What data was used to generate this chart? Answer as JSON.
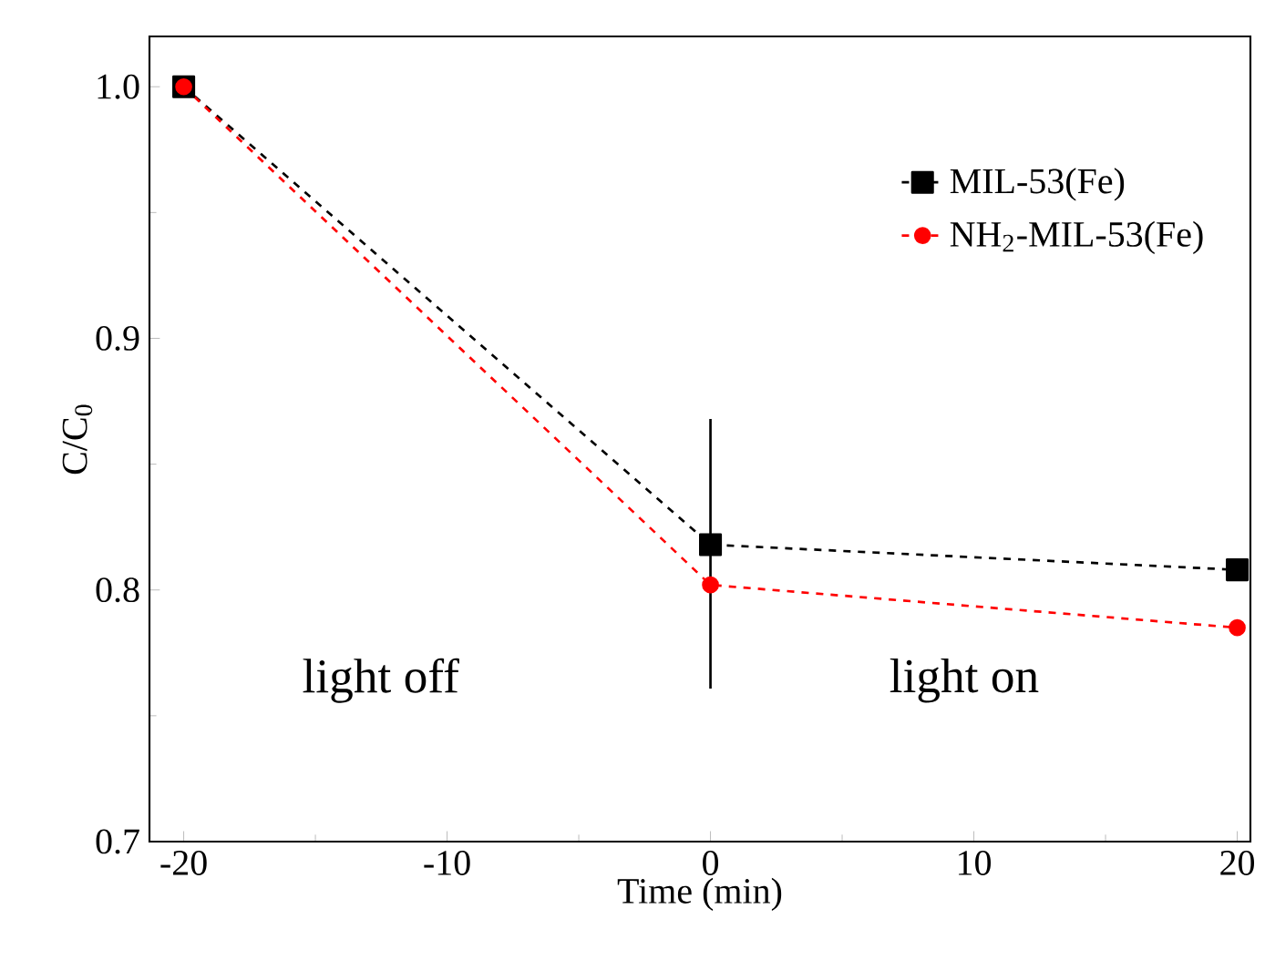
{
  "chart_data": {
    "type": "line",
    "xlabel": "Time (min)",
    "ylabel": "C/C$_{0}$",
    "x": [
      -20,
      0,
      20
    ],
    "series": [
      {
        "name": "MIL-53(Fe)",
        "color": "#000000",
        "values": [
          1.0,
          0.818,
          0.808
        ],
        "marker": "square"
      },
      {
        "name": "NH$_{2}$-MIL-53(Fe)",
        "color": "#ff0000",
        "values": [
          1.0,
          0.802,
          0.785
        ],
        "marker": "circle"
      }
    ],
    "line_style": "dashed",
    "legend": "top right",
    "grid": false,
    "xlim": [
      -21.3,
      20.5
    ],
    "ylim": [
      0.7,
      1.02
    ],
    "xticks": [
      {
        "value": -20,
        "label": "-20"
      },
      {
        "value": -10,
        "label": "-10"
      },
      0,
      10,
      20
    ],
    "yticks": [
      {
        "value": 0.7,
        "label": "0.7"
      },
      {
        "value": 0.8,
        "label": "0.8"
      },
      {
        "value": 0.9,
        "label": "0.9"
      },
      {
        "value": 1.0,
        "label": "1.0"
      }
    ],
    "ref_lines": [
      {
        "axis": "x",
        "value": 0,
        "color": "#000000"
      }
    ],
    "annotations": [
      "light off",
      "light on"
    ]
  }
}
